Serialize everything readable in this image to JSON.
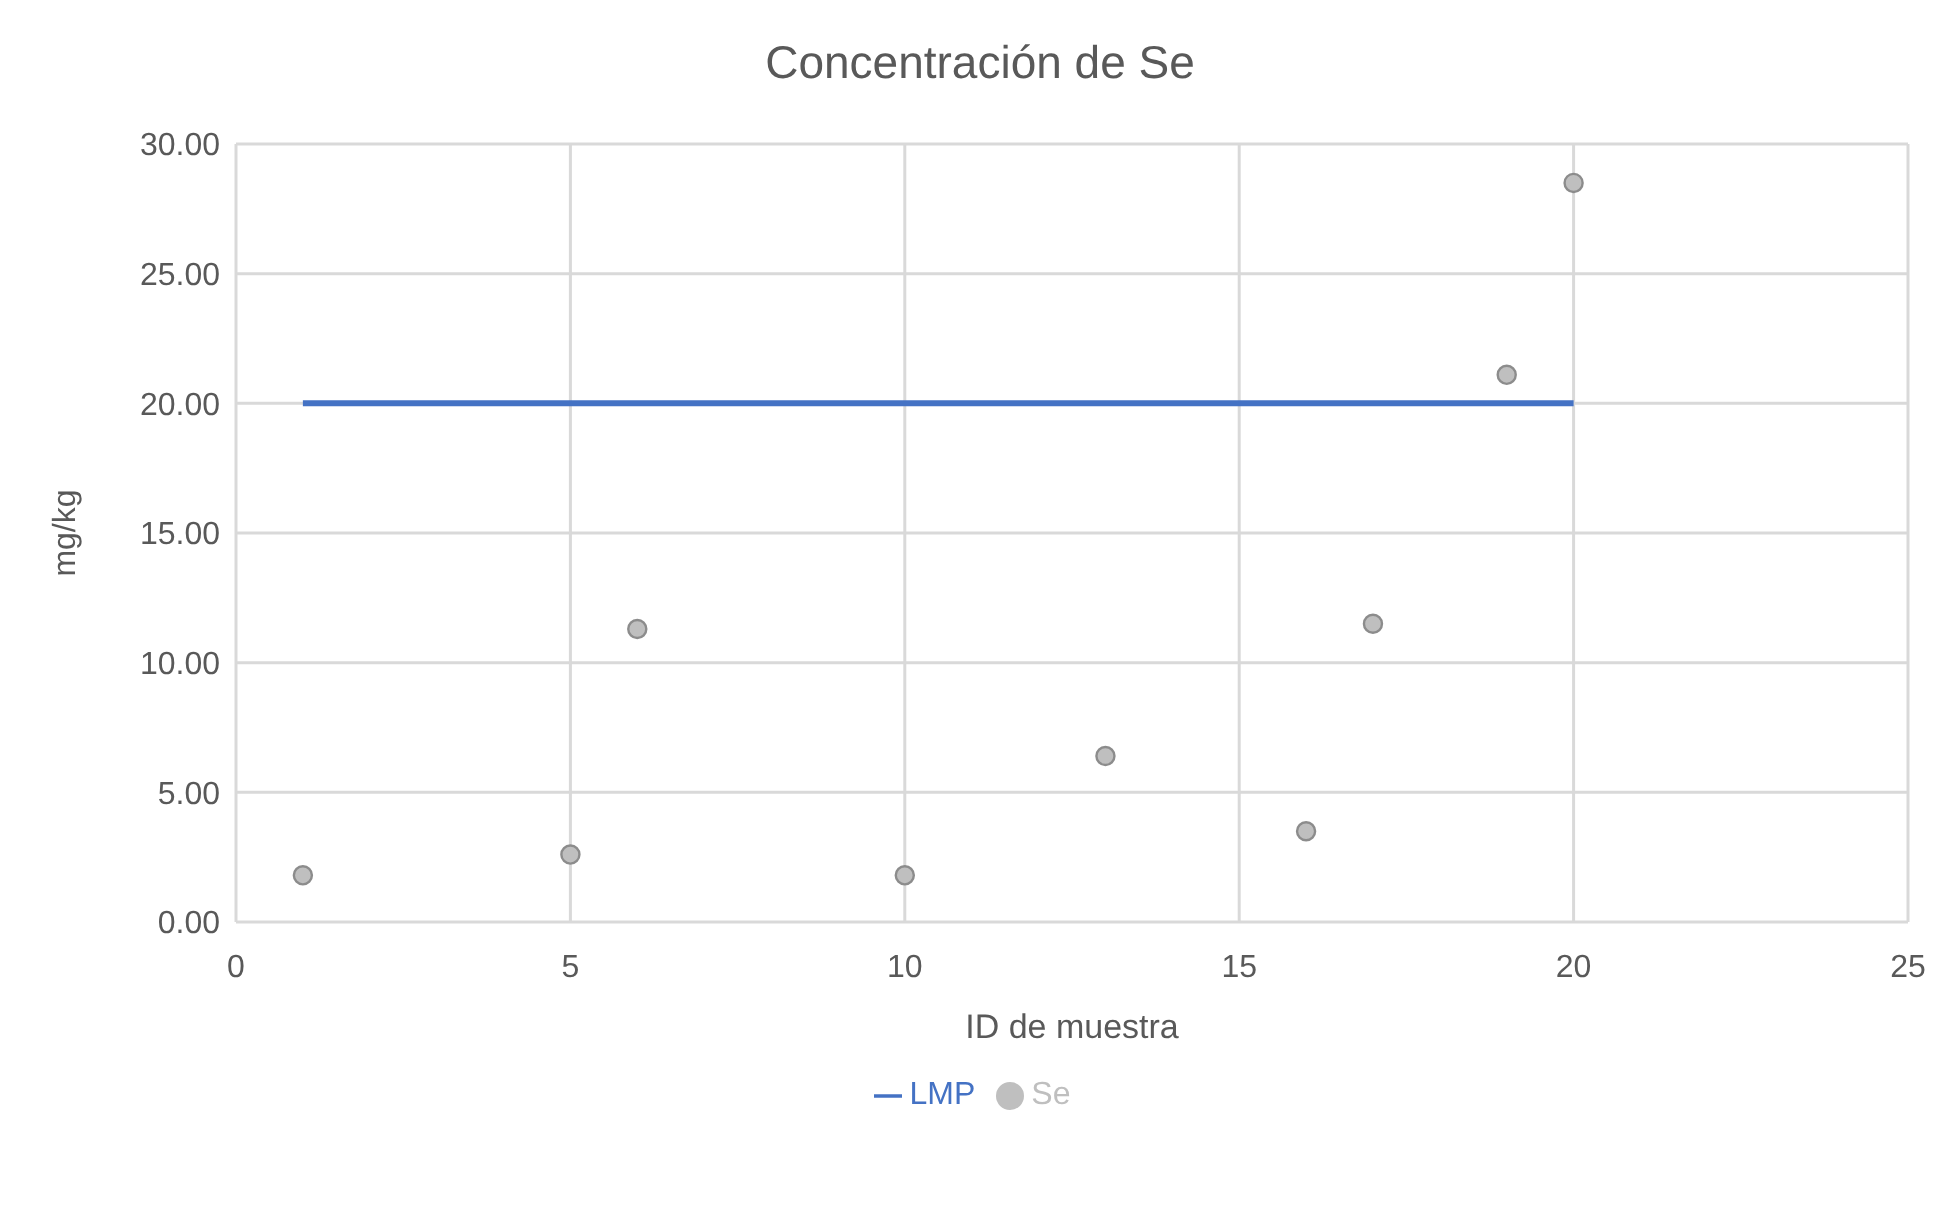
{
  "chart_data": {
    "type": "scatter",
    "title": "Concentración de Se",
    "xlabel": "ID de muestra",
    "ylabel": "mg/kg",
    "xlim": [
      0,
      25
    ],
    "xticks": [
      0,
      5,
      10,
      15,
      20,
      25
    ],
    "ylim": [
      0,
      30
    ],
    "yticks": [
      {
        "value": 0,
        "label": "0.00"
      },
      {
        "value": 5,
        "label": "5.00"
      },
      {
        "value": 10,
        "label": "10.00"
      },
      {
        "value": 15,
        "label": "15.00"
      },
      {
        "value": 20,
        "label": "20.00"
      },
      {
        "value": 25,
        "label": "25.00"
      },
      {
        "value": 30,
        "label": "30.00"
      }
    ],
    "grid": true,
    "legend": "bottom",
    "marker": "circle",
    "series": [
      {
        "name": "LMP",
        "type": "line",
        "color": "#4472c4",
        "x": [
          1,
          20
        ],
        "values": [
          20,
          20
        ],
        "marker": "none",
        "line_style": "solid"
      },
      {
        "name": "Se",
        "color": "#bfbfbf",
        "x": [
          1,
          5,
          6,
          10,
          13,
          16,
          17,
          19,
          20
        ],
        "values": [
          1.8,
          2.6,
          11.3,
          1.8,
          6.4,
          3.5,
          11.5,
          21.1,
          28.5
        ]
      }
    ]
  }
}
